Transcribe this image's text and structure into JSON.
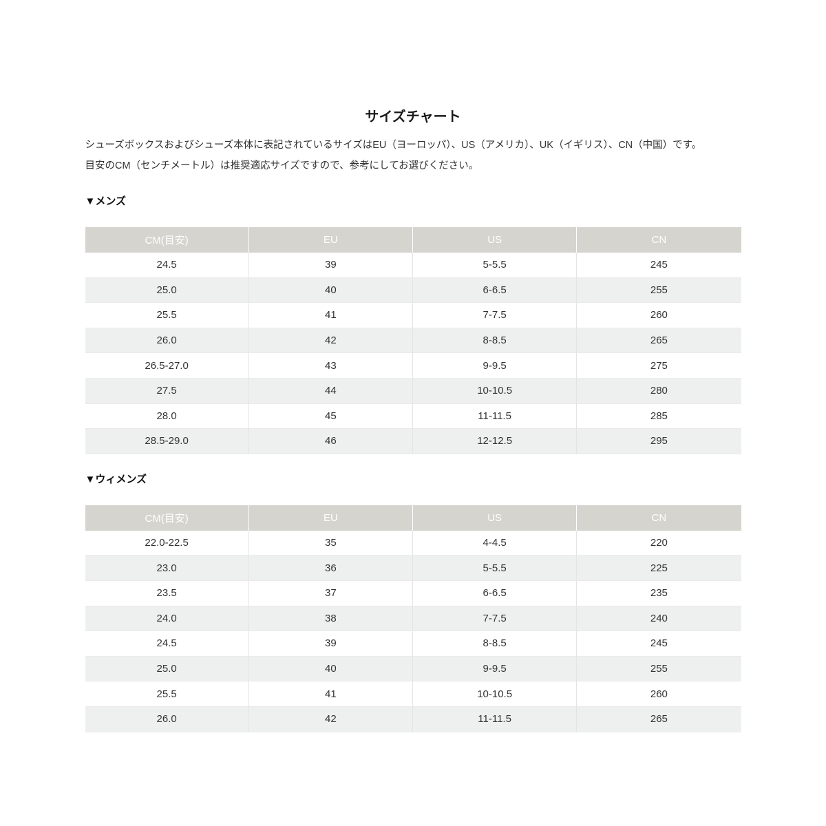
{
  "page": {
    "title": "サイズチャート",
    "intro_line1": "シューズボックスおよびシューズ本体に表記されているサイズはEU（ヨーロッパ）、US（アメリカ）、UK（イギリス）、CN（中国）です。",
    "intro_line2": "目安のCM（センチメートル）は推奨適応サイズですので、参考にしてお選びください。"
  },
  "colors": {
    "header_bg": "#d5d4ce",
    "header_text": "#ffffff",
    "row_alt_bg": "#eef0ef",
    "body_text": "#333333",
    "cell_border": "#e4e4e2"
  },
  "mens": {
    "section_label": "▼メンズ",
    "columns": [
      "CM(目安)",
      "EU",
      "US",
      "CN"
    ],
    "rows": [
      [
        "24.5",
        "39",
        "5-5.5",
        "245"
      ],
      [
        "25.0",
        "40",
        "6-6.5",
        "255"
      ],
      [
        "25.5",
        "41",
        "7-7.5",
        "260"
      ],
      [
        "26.0",
        "42",
        "8-8.5",
        "265"
      ],
      [
        "26.5-27.0",
        "43",
        "9-9.5",
        "275"
      ],
      [
        "27.5",
        "44",
        "10-10.5",
        "280"
      ],
      [
        "28.0",
        "45",
        "11-11.5",
        "285"
      ],
      [
        "28.5-29.0",
        "46",
        "12-12.5",
        "295"
      ]
    ]
  },
  "womens": {
    "section_label": "▼ウィメンズ",
    "columns": [
      "CM(目安)",
      "EU",
      "US",
      "CN"
    ],
    "rows": [
      [
        "22.0-22.5",
        "35",
        "4-4.5",
        "220"
      ],
      [
        "23.0",
        "36",
        "5-5.5",
        "225"
      ],
      [
        "23.5",
        "37",
        "6-6.5",
        "235"
      ],
      [
        "24.0",
        "38",
        "7-7.5",
        "240"
      ],
      [
        "24.5",
        "39",
        "8-8.5",
        "245"
      ],
      [
        "25.0",
        "40",
        "9-9.5",
        "255"
      ],
      [
        "25.5",
        "41",
        "10-10.5",
        "260"
      ],
      [
        "26.0",
        "42",
        "11-11.5",
        "265"
      ]
    ]
  }
}
